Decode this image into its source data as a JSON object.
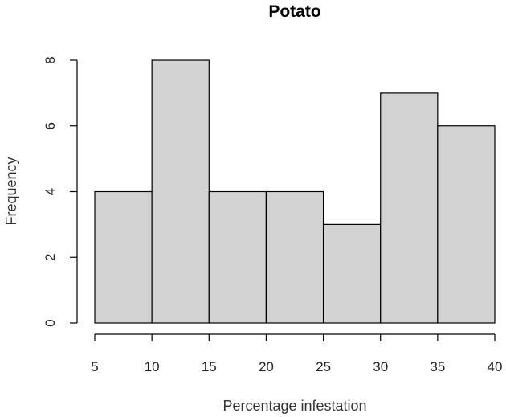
{
  "chart_data": {
    "type": "bar",
    "title": "Potato",
    "xlabel": "Percentage infestation",
    "ylabel": "Frequency",
    "bin_edges": [
      5,
      10,
      15,
      20,
      25,
      30,
      35,
      40
    ],
    "values": [
      4,
      8,
      4,
      4,
      3,
      7,
      6
    ],
    "xticks": [
      5,
      10,
      15,
      20,
      25,
      30,
      35,
      40
    ],
    "yticks": [
      0,
      2,
      4,
      6,
      8
    ],
    "xlim": [
      5,
      40
    ],
    "ylim": [
      0,
      8
    ],
    "bar_color": "#d3d3d3",
    "edge_color": "#000000",
    "grid": false
  }
}
